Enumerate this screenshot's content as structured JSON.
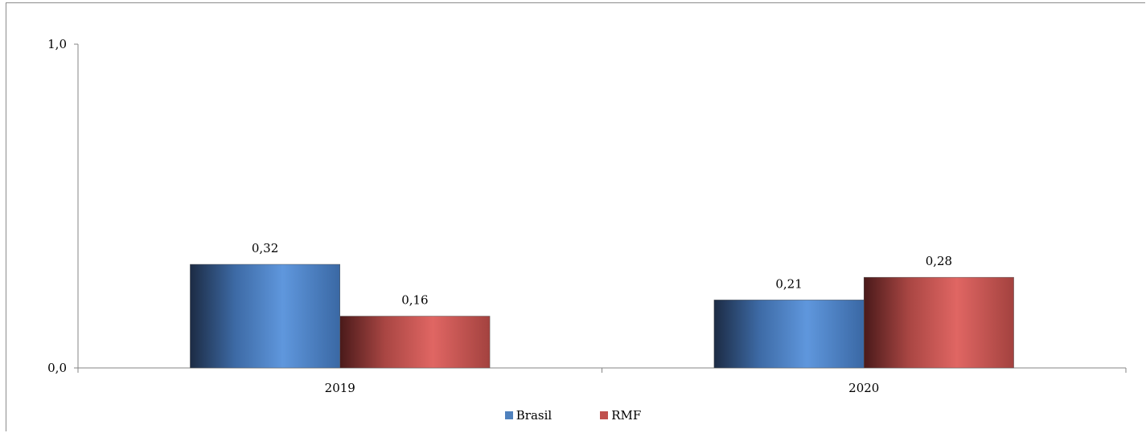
{
  "chart_data": {
    "type": "bar",
    "categories": [
      "2019",
      "2020"
    ],
    "series": [
      {
        "name": "Brasil",
        "values": [
          0.32,
          0.21
        ],
        "labels": [
          "0,32",
          "0,21"
        ],
        "color": "#4f81bd"
      },
      {
        "name": "RMF",
        "values": [
          0.16,
          0.28
        ],
        "labels": [
          "0,16",
          "0,28"
        ],
        "color": "#c0504d"
      }
    ],
    "yticks": [
      "1,0",
      "0,0"
    ],
    "ylim": [
      0,
      1
    ],
    "title": "",
    "xlabel": "",
    "ylabel": "",
    "grid": false,
    "legend": "bottom-center"
  }
}
